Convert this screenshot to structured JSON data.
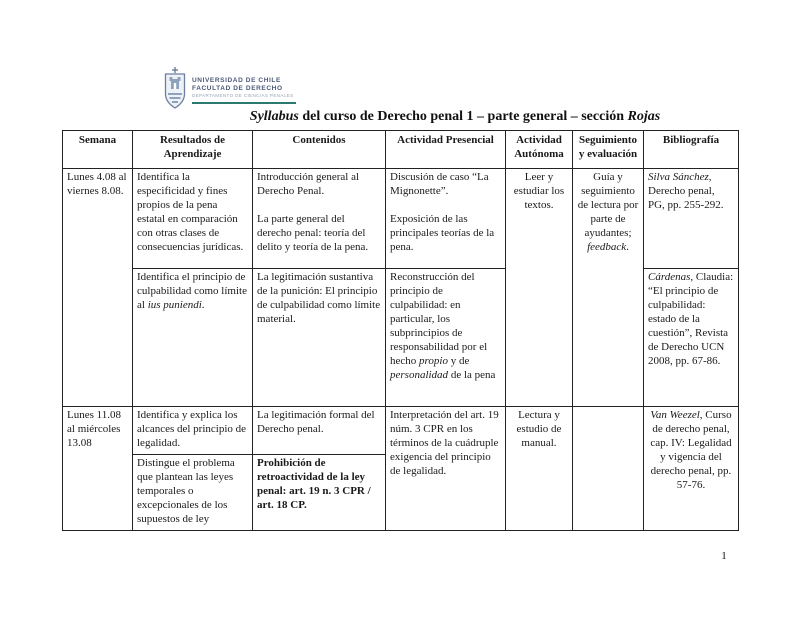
{
  "letterhead": {
    "university": "UNIVERSIDAD DE CHILE",
    "faculty": "FACULTAD DE DERECHO",
    "department": "DEPARTAMENTO DE CIENCIAS PENALES",
    "accent_color": "#2c7a6e",
    "crest_icon": "universidad-de-chile-crest"
  },
  "title": [
    {
      "t": "Syllabus",
      "s": "bi"
    },
    {
      "t": " del curso de Derecho penal 1  – parte general – sección ",
      "s": "b"
    },
    {
      "t": "Rojas",
      "s": "bi"
    }
  ],
  "table": {
    "columns": [
      "Semana",
      "Resultados de Aprendizaje",
      "Contenidos",
      "Actividad Presencial",
      "Actividad Autónoma",
      "Seguimiento y evaluación",
      "Bibliografía"
    ],
    "weeks": [
      {
        "semana": "Lunes 4.08 al viernes 8.08.",
        "actividad_autonoma": "Leer y estudiar los textos.",
        "seguimiento": [
          {
            "t": "Guía y seguimiento de lectura por parte de ayudantes; ",
            "s": ""
          },
          {
            "t": "feedback",
            "s": "i"
          },
          {
            "t": ".",
            "s": ""
          }
        ],
        "sub": [
          {
            "resultados": "Identifica la especificidad y fines propios de la pena estatal en comparación con otras clases de consecuencias jurídicas.",
            "contenidos": "Introducción general al Derecho Penal.\n\nLa parte general del derecho penal: teoría del delito y teoría de la pena.",
            "actividad_presencial": "Discusión de caso “La Mignonette”.\n\nExposición de las principales teorías de la pena.",
            "bibliografia": [
              {
                "t": "Silva Sánchez",
                "s": "i"
              },
              {
                "t": ", Derecho penal, PG, pp. 255-292.",
                "s": ""
              }
            ]
          },
          {
            "resultados": [
              {
                "t": "Identifica el principio de culpabilidad como límite al ",
                "s": ""
              },
              {
                "t": "ius puniendi",
                "s": "i"
              },
              {
                "t": ".",
                "s": ""
              }
            ],
            "contenidos": "La legitimación sustantiva de la punición: El principio de culpabilidad como límite material.",
            "actividad_presencial": [
              {
                "t": "Reconstrucción del principio de culpabilidad: en particular, los subprincipios de responsabilidad por el hecho ",
                "s": ""
              },
              {
                "t": "propio",
                "s": "i"
              },
              {
                "t": " y de ",
                "s": ""
              },
              {
                "t": "personalidad",
                "s": "i"
              },
              {
                "t": " de la pena",
                "s": ""
              }
            ],
            "bibliografia": [
              {
                "t": "Cárdenas",
                "s": "i"
              },
              {
                "t": ", Claudia: “El principio de culpabilidad: estado de la cuestión”, Revista de Derecho UCN 2008, pp. 67-86.",
                "s": ""
              }
            ]
          }
        ]
      },
      {
        "semana": "Lunes 11.08 al miércoles 13.08",
        "actividad_presencial": "Interpretación del art. 19 núm. 3 CPR en los términos de la cuádruple exigencia del principio de legalidad.",
        "actividad_autonoma": "Lectura y estudio de manual.",
        "seguimiento": "",
        "bibliografia": [
          {
            "t": "Van Weezel",
            "s": "i"
          },
          {
            "t": ", Curso de derecho penal, cap. IV: Legalidad y vigencia del derecho penal, pp. 57-76.",
            "s": ""
          }
        ],
        "sub": [
          {
            "resultados": "Identifica y explica los alcances del principio de legalidad.",
            "contenidos": "La legitimación formal del Derecho penal."
          },
          {
            "resultados": "Distingue el problema que plantean las leyes temporales o excepcionales de los supuestos de ley",
            "contenidos": [
              {
                "t": "Prohibición de retroactividad de la ley penal: art. 19 n. 3 CPR / art. 18 CP.",
                "s": "b"
              }
            ]
          }
        ]
      }
    ]
  },
  "footer": {
    "page_number": "1"
  }
}
